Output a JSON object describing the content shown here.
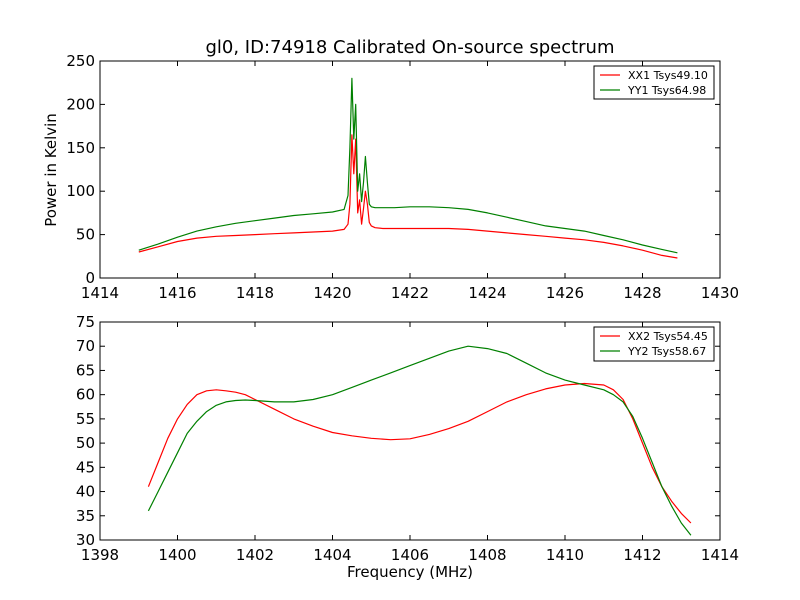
{
  "chart_data": [
    {
      "type": "line",
      "title": "gl0, ID:74918 Calibrated On-source spectrum",
      "xlabel": "",
      "ylabel": "Power in Kelvin",
      "xlim": [
        1414,
        1430
      ],
      "ylim": [
        0,
        250
      ],
      "xticks": [
        1414,
        1416,
        1418,
        1420,
        1422,
        1424,
        1426,
        1428,
        1430
      ],
      "yticks": [
        0,
        50,
        100,
        150,
        200,
        250
      ],
      "grid": false,
      "legend_position": "top-right",
      "series": [
        {
          "name": "XX1 Tsys49.10",
          "color": "#ff0000",
          "x": [
            1415.0,
            1415.5,
            1416.0,
            1416.5,
            1417.0,
            1417.5,
            1418.0,
            1418.5,
            1419.0,
            1419.5,
            1420.0,
            1420.3,
            1420.4,
            1420.45,
            1420.5,
            1420.55,
            1420.6,
            1420.65,
            1420.7,
            1420.75,
            1420.8,
            1420.85,
            1420.9,
            1420.95,
            1421.0,
            1421.1,
            1421.3,
            1421.6,
            1422.0,
            1422.5,
            1423.0,
            1423.5,
            1424.0,
            1424.5,
            1425.0,
            1425.5,
            1426.0,
            1426.5,
            1427.0,
            1427.5,
            1428.0,
            1428.5,
            1428.9
          ],
          "y": [
            30,
            36,
            42,
            46,
            48,
            49,
            50,
            51,
            52,
            53,
            54,
            56,
            62,
            85,
            165,
            120,
            160,
            75,
            90,
            62,
            80,
            100,
            85,
            64,
            60,
            58,
            57,
            57,
            57,
            57,
            57,
            56,
            54,
            52,
            50,
            48,
            46,
            44,
            41,
            37,
            32,
            26,
            23
          ]
        },
        {
          "name": "YY1 Tsys64.98",
          "color": "#008000",
          "x": [
            1415.0,
            1415.5,
            1416.0,
            1416.5,
            1417.0,
            1417.5,
            1418.0,
            1418.5,
            1419.0,
            1419.5,
            1420.0,
            1420.3,
            1420.4,
            1420.45,
            1420.5,
            1420.55,
            1420.6,
            1420.65,
            1420.7,
            1420.75,
            1420.8,
            1420.85,
            1420.9,
            1420.95,
            1421.0,
            1421.1,
            1421.3,
            1421.6,
            1422.0,
            1422.5,
            1423.0,
            1423.5,
            1424.0,
            1424.5,
            1425.0,
            1425.5,
            1426.0,
            1426.5,
            1427.0,
            1427.5,
            1428.0,
            1428.5,
            1428.9
          ],
          "y": [
            32,
            39,
            47,
            54,
            59,
            63,
            66,
            69,
            72,
            74,
            76,
            79,
            95,
            150,
            230,
            160,
            200,
            100,
            120,
            88,
            110,
            140,
            110,
            85,
            82,
            81,
            81,
            81,
            82,
            82,
            81,
            79,
            75,
            70,
            65,
            60,
            57,
            54,
            49,
            44,
            38,
            33,
            29
          ]
        }
      ]
    },
    {
      "type": "line",
      "title": "",
      "xlabel": "Frequency (MHz)",
      "ylabel": "",
      "xlim": [
        1398,
        1414
      ],
      "ylim": [
        30,
        75
      ],
      "xticks": [
        1398,
        1400,
        1402,
        1404,
        1406,
        1408,
        1410,
        1412,
        1414
      ],
      "yticks": [
        30,
        35,
        40,
        45,
        50,
        55,
        60,
        65,
        70,
        75
      ],
      "grid": false,
      "legend_position": "top-right",
      "series": [
        {
          "name": "XX2 Tsys54.45",
          "color": "#ff0000",
          "x": [
            1399.25,
            1399.5,
            1399.75,
            1400.0,
            1400.25,
            1400.5,
            1400.75,
            1401.0,
            1401.25,
            1401.5,
            1401.75,
            1402.0,
            1402.5,
            1403.0,
            1403.5,
            1404.0,
            1404.5,
            1405.0,
            1405.5,
            1406.0,
            1406.5,
            1407.0,
            1407.5,
            1408.0,
            1408.5,
            1409.0,
            1409.5,
            1410.0,
            1410.5,
            1411.0,
            1411.25,
            1411.5,
            1411.75,
            1412.0,
            1412.25,
            1412.5,
            1412.75,
            1413.0,
            1413.25
          ],
          "y": [
            41,
            46,
            51,
            55,
            58,
            60,
            60.8,
            61,
            60.8,
            60.5,
            60,
            59,
            57,
            55,
            53.5,
            52.2,
            51.5,
            51,
            50.7,
            50.9,
            51.8,
            53,
            54.5,
            56.5,
            58.5,
            60,
            61.2,
            62,
            62.3,
            62,
            61,
            59,
            55,
            50,
            45,
            41,
            38,
            35.5,
            33.5
          ]
        },
        {
          "name": "YY2 Tsys58.67",
          "color": "#008000",
          "x": [
            1399.25,
            1399.5,
            1399.75,
            1400.0,
            1400.25,
            1400.5,
            1400.75,
            1401.0,
            1401.25,
            1401.5,
            1401.75,
            1402.0,
            1402.5,
            1403.0,
            1403.5,
            1404.0,
            1404.5,
            1405.0,
            1405.5,
            1406.0,
            1406.5,
            1407.0,
            1407.5,
            1408.0,
            1408.5,
            1409.0,
            1409.5,
            1410.0,
            1410.5,
            1411.0,
            1411.25,
            1411.5,
            1411.75,
            1412.0,
            1412.25,
            1412.5,
            1412.75,
            1413.0,
            1413.25
          ],
          "y": [
            36,
            40,
            44,
            48,
            52,
            54.5,
            56.5,
            57.8,
            58.5,
            58.8,
            58.9,
            58.8,
            58.5,
            58.5,
            59,
            60,
            61.5,
            63,
            64.5,
            66,
            67.5,
            69,
            70,
            69.5,
            68.5,
            66.5,
            64.5,
            63,
            62,
            61,
            60,
            58.5,
            55.5,
            51,
            46,
            41,
            37,
            33.5,
            31
          ]
        }
      ]
    }
  ]
}
